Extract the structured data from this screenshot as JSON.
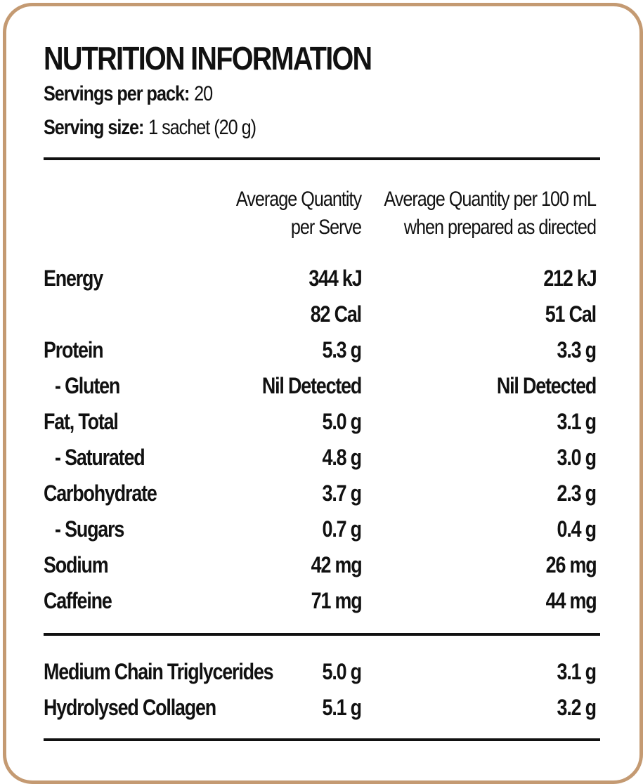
{
  "title": "NUTRITION INFORMATION",
  "servings": {
    "label": "Servings per pack:",
    "value": "20"
  },
  "serving_size": {
    "label": "Serving size:",
    "value": "1 sachet (20 g)"
  },
  "columns": {
    "per_serve_line1": "Average Quantity",
    "per_serve_line2": "per Serve",
    "per_100ml_line1": "Average Quantity per 100 mL",
    "per_100ml_line2": "when prepared as directed"
  },
  "rows": [
    {
      "name": "Energy",
      "per_serve": "344 kJ",
      "per_100ml": "212 kJ"
    },
    {
      "name": "",
      "per_serve": "82 Cal",
      "per_100ml": "51 Cal"
    },
    {
      "name": "Protein",
      "per_serve": "5.3 g",
      "per_100ml": "3.3 g"
    },
    {
      "name": "- Gluten",
      "per_serve": "Nil Detected",
      "per_100ml": "Nil Detected"
    },
    {
      "name": "Fat, Total",
      "per_serve": "5.0 g",
      "per_100ml": "3.1 g"
    },
    {
      "name": "- Saturated",
      "per_serve": "4.8 g",
      "per_100ml": "3.0 g"
    },
    {
      "name": "Carbohydrate",
      "per_serve": "3.7 g",
      "per_100ml": "2.3 g"
    },
    {
      "name": "- Sugars",
      "per_serve": "0.7 g",
      "per_100ml": "0.4 g"
    },
    {
      "name": "Sodium",
      "per_serve": "42 mg",
      "per_100ml": "26 mg"
    },
    {
      "name": "Caffeine",
      "per_serve": "71 mg",
      "per_100ml": "44 mg"
    }
  ],
  "extra_rows": [
    {
      "name": "Medium Chain Triglycerides",
      "per_serve": "5.0 g",
      "per_100ml": "3.1 g"
    },
    {
      "name": "Hydrolysed Collagen",
      "per_serve": "5.1 g",
      "per_100ml": "3.2 g"
    }
  ],
  "colors": {
    "border": "#c49a72",
    "text": "#111111"
  }
}
